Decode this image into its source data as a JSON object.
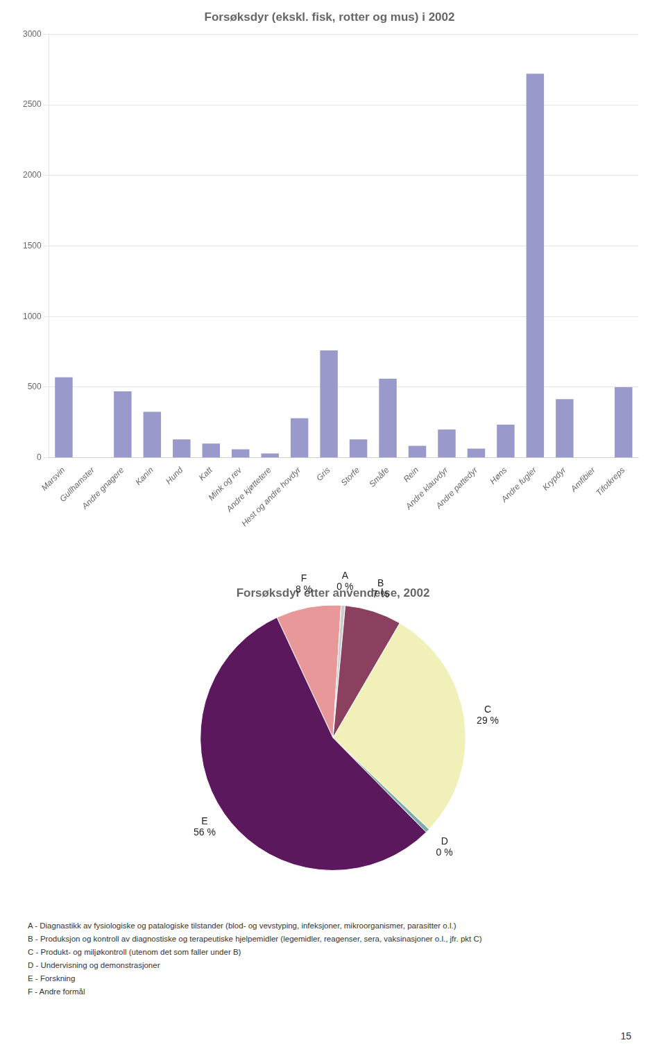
{
  "chart_data": [
    {
      "type": "bar",
      "title": "Forsøksdyr (ekskl. fisk, rotter og mus) i 2002",
      "categories": [
        "Marsvin",
        "Gullhamster",
        "Andre gnagere",
        "Kanin",
        "Hund",
        "Katt",
        "Mink og rev",
        "Andre kjøttetere",
        "Hest og andre hovdyr",
        "Gris",
        "Storfe",
        "Småfe",
        "Rein",
        "Andre klauvdyr",
        "Andre pattedyr",
        "Høns",
        "Andre fugler",
        "Krypdyr",
        "Amfibier",
        "Tifotkreps"
      ],
      "values": [
        570,
        0,
        470,
        325,
        130,
        100,
        60,
        30,
        280,
        760,
        130,
        560,
        85,
        200,
        65,
        235,
        2720,
        415,
        0,
        500
      ],
      "color": "#9999cc",
      "ylim": [
        0,
        3000
      ],
      "yticks": [
        0,
        500,
        1000,
        1500,
        2000,
        2500,
        3000
      ],
      "grid": true
    },
    {
      "type": "pie",
      "title": "Forsøksdyr etter anvendelse, 2002",
      "categories": [
        "F",
        "A",
        "B",
        "C",
        "D",
        "E"
      ],
      "values": [
        8,
        0.5,
        7,
        29,
        0.5,
        56
      ],
      "value_labels": [
        "8 %",
        "0 %",
        "7 %",
        "29 %",
        "0 %",
        "56 %"
      ],
      "colors": [
        "#e89898",
        "#cccccc",
        "#8b4060",
        "#f0f0b8",
        "#7aacac",
        "#5c185c"
      ],
      "data_labels": true,
      "annotations": [
        "A - Diagnastikk av fysiologiske og patalogiske tilstander (blod- og vevstyping, infeksjoner, mikroorganismer, parasitter o.l.)",
        "B - Produksjon og kontroll av diagnostiske og terapeutiske hjelpemidler (legemidler, reagenser, sera, vaksinasjoner o.l., jfr. pkt C)",
        "C - Produkt- og miljøkontroll (utenom det som faller under B)",
        "D - Undervisning og demonstrasjoner",
        "E - Forskning",
        "F - Andre formål"
      ]
    }
  ],
  "page_number": "15"
}
